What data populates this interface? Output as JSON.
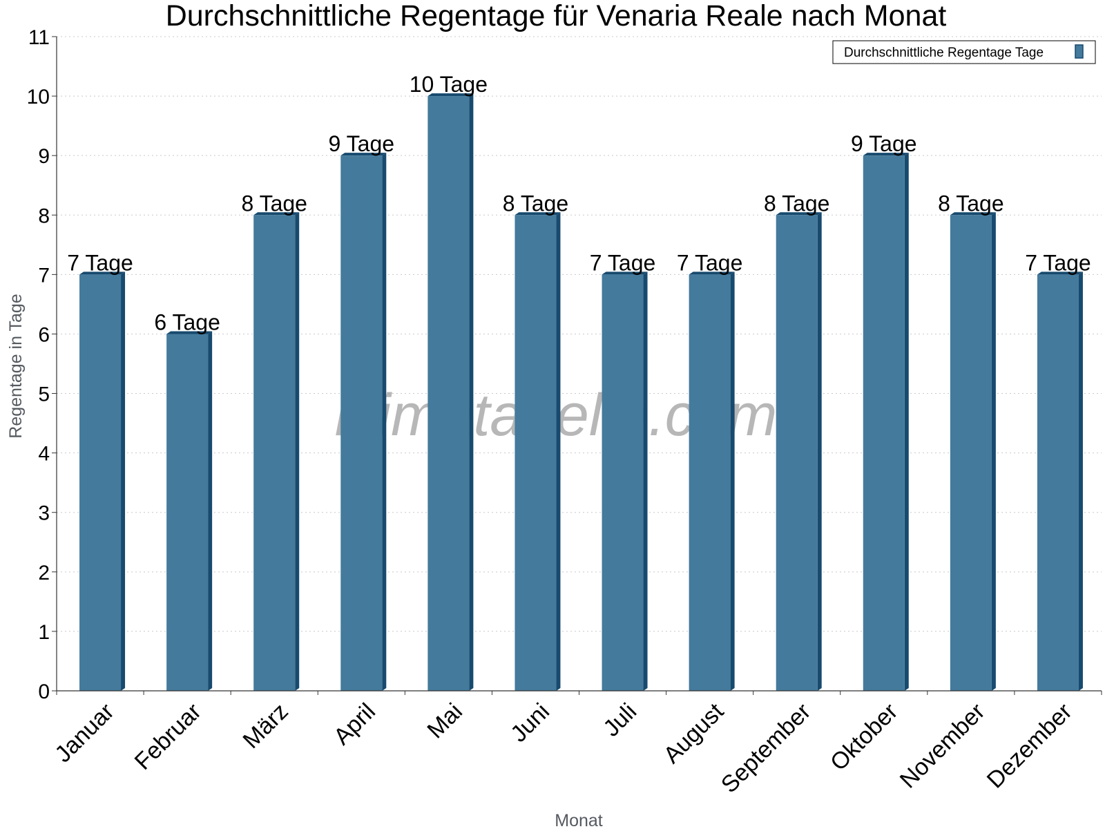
{
  "chart_data": {
    "type": "bar",
    "title": "Durchschnittliche Regentage für Venaria Reale nach Monat",
    "xlabel": "Monat",
    "ylabel": "Regentage in Tage",
    "ylim": [
      0,
      11
    ],
    "yticks": [
      "0",
      "1",
      "2",
      "3",
      "4",
      "5",
      "6",
      "7",
      "8",
      "9",
      "10",
      "11"
    ],
    "categories": [
      "Januar",
      "Februar",
      "März",
      "April",
      "Mai",
      "Juni",
      "Juli",
      "August",
      "September",
      "Oktober",
      "November",
      "Dezember"
    ],
    "series": [
      {
        "name": "Durchschnittliche Regentage Tage",
        "values": [
          7,
          6,
          8,
          9,
          10,
          8,
          7,
          7,
          8,
          9,
          8,
          7
        ],
        "value_labels": [
          "7 Tage",
          "6 Tage",
          "8 Tage",
          "9 Tage",
          "10 Tage",
          "8 Tage",
          "7 Tage",
          "7 Tage",
          "8 Tage",
          "9 Tage",
          "8 Tage",
          "7 Tage"
        ],
        "color": "#447a9c"
      }
    ],
    "grid": true,
    "legend_position": "top-right"
  },
  "watermark": "klimatabelle.com",
  "colors": {
    "bar_front": "#447a9c",
    "bar_side": "#174a6e",
    "grid": "#c8c8c8",
    "axis": "#333333"
  }
}
